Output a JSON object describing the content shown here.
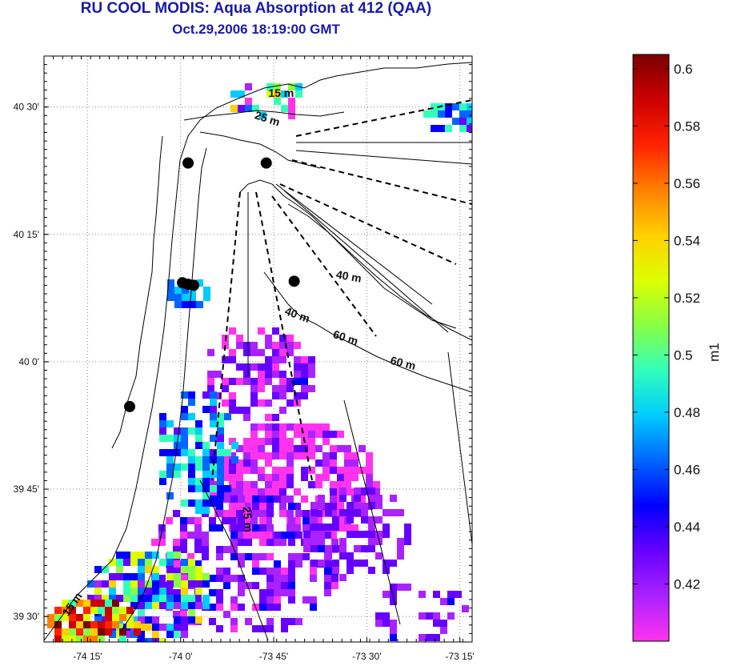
{
  "title": "RU COOL MODIS: Aqua Absorption at 412 (QAA)",
  "subtitle": "Oct.29,2006 18:19:00 GMT",
  "map": {
    "lon_range": [
      -74.367,
      -73.217
    ],
    "lat_range": [
      39.45,
      40.6
    ],
    "x_ticks": [
      {
        "value": -74.25,
        "label": "-74 15'"
      },
      {
        "value": -74.0,
        "label": "-74 0'"
      },
      {
        "value": -73.75,
        "label": "-73 45'"
      },
      {
        "value": -73.5,
        "label": "-73 30'"
      },
      {
        "value": -73.25,
        "label": "-73 15'"
      }
    ],
    "y_ticks": [
      {
        "value": 40.5,
        "label": "40 30'"
      },
      {
        "value": 40.25,
        "label": "40 15'"
      },
      {
        "value": 40.0,
        "label": "40 0'"
      },
      {
        "value": 39.75,
        "label": "39 45'"
      },
      {
        "value": 39.5,
        "label": "39 30'"
      }
    ],
    "grid": "dotted",
    "contour_labels": [
      {
        "text": "15 m",
        "lon": -73.73,
        "lat": 40.52,
        "rotate": 0
      },
      {
        "text": "25 m",
        "lon": -73.77,
        "lat": 40.47,
        "rotate": 18
      },
      {
        "text": "40 m",
        "lon": -73.55,
        "lat": 40.16,
        "rotate": 10
      },
      {
        "text": "40 m",
        "lon": -73.69,
        "lat": 40.085,
        "rotate": 20
      },
      {
        "text": "60 m",
        "lon": -73.56,
        "lat": 40.04,
        "rotate": 18
      },
      {
        "text": "60 m",
        "lon": -73.405,
        "lat": 39.99,
        "rotate": 14
      },
      {
        "text": "25 m",
        "lon": -73.83,
        "lat": 39.69,
        "rotate": 85
      },
      {
        "text": "15 m",
        "lon": -74.283,
        "lat": 39.52,
        "rotate": -55
      }
    ],
    "stations": [
      {
        "lon": -73.98,
        "lat": 40.39
      },
      {
        "lon": -73.77,
        "lat": 40.39
      },
      {
        "lon": -73.995,
        "lat": 40.155
      },
      {
        "lon": -73.98,
        "lat": 40.152
      },
      {
        "lon": -73.965,
        "lat": 40.15
      },
      {
        "lon": -73.695,
        "lat": 40.158
      },
      {
        "lon": -74.137,
        "lat": 39.912
      }
    ]
  },
  "colorbar": {
    "min": 0.4,
    "max": 0.605,
    "label": "m1",
    "ticks": [
      {
        "value": 0.6,
        "label": "0.6"
      },
      {
        "value": 0.58,
        "label": "0.58"
      },
      {
        "value": 0.56,
        "label": "0.56"
      },
      {
        "value": 0.54,
        "label": "0.54"
      },
      {
        "value": 0.52,
        "label": "0.52"
      },
      {
        "value": 0.5,
        "label": "0.5"
      },
      {
        "value": 0.48,
        "label": "0.48"
      },
      {
        "value": 0.46,
        "label": "0.46"
      },
      {
        "value": 0.44,
        "label": "0.44"
      },
      {
        "value": 0.42,
        "label": "0.42"
      }
    ],
    "colors": [
      "#ff33ee",
      "#aa22ff",
      "#6600ff",
      "#0000ff",
      "#0066ff",
      "#00ccff",
      "#33ffbb",
      "#88ff44",
      "#ddff00",
      "#ffd000",
      "#ff8000",
      "#ff2200",
      "#cc0000",
      "#7a0000"
    ]
  }
}
